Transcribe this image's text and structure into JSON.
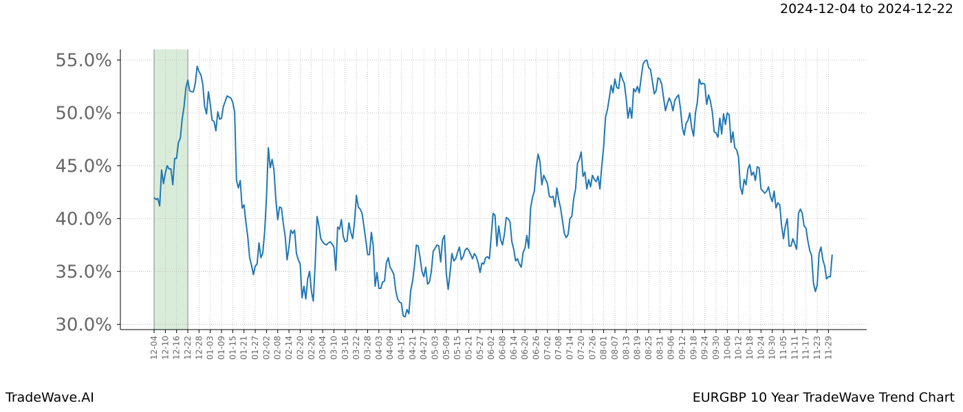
{
  "header": {
    "date_range": "2024-12-04 to 2024-12-22"
  },
  "footer": {
    "brand": "TradeWave.AI",
    "title": "EURGBP 10 Year TradeWave Trend Chart"
  },
  "colors": {
    "line": "#1f77b4",
    "highlight": "#d9ecd9",
    "grid": "#b0b0b0",
    "axis": "#000000",
    "tick_text": "#666666"
  },
  "chart_data": {
    "type": "line",
    "title": "",
    "xlabel": "",
    "ylabel": "",
    "ylim": [
      0.295,
      0.56
    ],
    "y_format": "percent",
    "y_ticks": [
      "30.0%",
      "35.0%",
      "40.0%",
      "45.0%",
      "50.0%",
      "55.0%"
    ],
    "y_tick_values": [
      0.3,
      0.35,
      0.4,
      0.45,
      0.5,
      0.55
    ],
    "x_tick_labels": [
      "12-04",
      "12-10",
      "12-16",
      "12-22",
      "12-28",
      "01-03",
      "01-09",
      "01-15",
      "01-21",
      "01-27",
      "02-02",
      "02-08",
      "02-14",
      "02-20",
      "02-26",
      "03-04",
      "03-10",
      "03-16",
      "03-22",
      "03-28",
      "04-03",
      "04-09",
      "04-15",
      "04-21",
      "04-27",
      "05-03",
      "05-09",
      "05-15",
      "05-21",
      "05-27",
      "06-02",
      "06-08",
      "06-14",
      "06-20",
      "06-26",
      "07-02",
      "07-08",
      "07-14",
      "07-20",
      "07-26",
      "08-01",
      "08-07",
      "08-13",
      "08-19",
      "08-25",
      "08-31",
      "09-06",
      "09-12",
      "09-18",
      "09-24",
      "09-30",
      "10-06",
      "10-12",
      "10-18",
      "10-24",
      "10-30",
      "11-05",
      "11-11",
      "11-17",
      "11-23",
      "11-29"
    ],
    "grid": true,
    "highlight_range": [
      "12-04",
      "12-22"
    ],
    "series": [
      {
        "name": "",
        "x_start": "12-04",
        "step_days": 1,
        "values": [
          0.42,
          0.418,
          0.419,
          0.412,
          0.446,
          0.433,
          0.443,
          0.45,
          0.447,
          0.447,
          0.432,
          0.457,
          0.457,
          0.472,
          0.476,
          0.494,
          0.506,
          0.524,
          0.531,
          0.521,
          0.52,
          0.52,
          0.528,
          0.544,
          0.539,
          0.536,
          0.527,
          0.506,
          0.499,
          0.52,
          0.508,
          0.493,
          0.492,
          0.483,
          0.501,
          0.494,
          0.495,
          0.506,
          0.511,
          0.516,
          0.515,
          0.514,
          0.51,
          0.501,
          0.436,
          0.429,
          0.436,
          0.41,
          0.413,
          0.397,
          0.383,
          0.363,
          0.356,
          0.347,
          0.355,
          0.357,
          0.377,
          0.363,
          0.367,
          0.387,
          0.42,
          0.467,
          0.448,
          0.456,
          0.446,
          0.418,
          0.399,
          0.411,
          0.41,
          0.395,
          0.383,
          0.361,
          0.373,
          0.389,
          0.386,
          0.389,
          0.367,
          0.361,
          0.357,
          0.325,
          0.336,
          0.324,
          0.343,
          0.35,
          0.331,
          0.322,
          0.357,
          0.402,
          0.393,
          0.381,
          0.378,
          0.376,
          0.375,
          0.377,
          0.378,
          0.376,
          0.373,
          0.351,
          0.392,
          0.39,
          0.399,
          0.383,
          0.378,
          0.379,
          0.396,
          0.387,
          0.381,
          0.397,
          0.422,
          0.411,
          0.409,
          0.405,
          0.393,
          0.38,
          0.366,
          0.366,
          0.387,
          0.374,
          0.336,
          0.349,
          0.334,
          0.334,
          0.34,
          0.341,
          0.358,
          0.363,
          0.354,
          0.351,
          0.347,
          0.332,
          0.324,
          0.321,
          0.32,
          0.308,
          0.307,
          0.314,
          0.31,
          0.332,
          0.341,
          0.355,
          0.375,
          0.374,
          0.363,
          0.35,
          0.345,
          0.354,
          0.338,
          0.34,
          0.35,
          0.369,
          0.372,
          0.375,
          0.374,
          0.359,
          0.38,
          0.384,
          0.348,
          0.333,
          0.349,
          0.367,
          0.36,
          0.362,
          0.368,
          0.373,
          0.361,
          0.364,
          0.37,
          0.372,
          0.37,
          0.366,
          0.362,
          0.367,
          0.364,
          0.358,
          0.349,
          0.358,
          0.357,
          0.363,
          0.364,
          0.362,
          0.384,
          0.405,
          0.403,
          0.374,
          0.393,
          0.38,
          0.375,
          0.385,
          0.401,
          0.4,
          0.397,
          0.378,
          0.371,
          0.36,
          0.362,
          0.357,
          0.354,
          0.368,
          0.372,
          0.384,
          0.372,
          0.41,
          0.42,
          0.426,
          0.448,
          0.461,
          0.454,
          0.432,
          0.441,
          0.437,
          0.433,
          0.421,
          0.42,
          0.421,
          0.411,
          0.429,
          0.418,
          0.41,
          0.398,
          0.386,
          0.382,
          0.385,
          0.4,
          0.402,
          0.419,
          0.428,
          0.452,
          0.456,
          0.463,
          0.44,
          0.444,
          0.428,
          0.437,
          0.43,
          0.441,
          0.437,
          0.435,
          0.44,
          0.428,
          0.45,
          0.468,
          0.496,
          0.503,
          0.514,
          0.526,
          0.519,
          0.532,
          0.524,
          0.523,
          0.538,
          0.532,
          0.528,
          0.514,
          0.495,
          0.505,
          0.495,
          0.523,
          0.52,
          0.525,
          0.519,
          0.533,
          0.546,
          0.549,
          0.55,
          0.543,
          0.541,
          0.53,
          0.518,
          0.521,
          0.533,
          0.532,
          0.527,
          0.514,
          0.502,
          0.509,
          0.514,
          0.51,
          0.502,
          0.512,
          0.515,
          0.517,
          0.504,
          0.486,
          0.479,
          0.49,
          0.493,
          0.5,
          0.486,
          0.478,
          0.5,
          0.51,
          0.532,
          0.527,
          0.528,
          0.527,
          0.508,
          0.517,
          0.511,
          0.501,
          0.482,
          0.481,
          0.477,
          0.495,
          0.48,
          0.499,
          0.489,
          0.5,
          0.498,
          0.472,
          0.482,
          0.467,
          0.465,
          0.458,
          0.43,
          0.423,
          0.437,
          0.432,
          0.447,
          0.451,
          0.441,
          0.444,
          0.436,
          0.449,
          0.448,
          0.428,
          0.426,
          0.424,
          0.426,
          0.43,
          0.421,
          0.416,
          0.426,
          0.41,
          0.415,
          0.413,
          0.393,
          0.381,
          0.393,
          0.4,
          0.374,
          0.374,
          0.381,
          0.376,
          0.371,
          0.405,
          0.409,
          0.405,
          0.393,
          0.391,
          0.379,
          0.37,
          0.365,
          0.339,
          0.331,
          0.337,
          0.367,
          0.373,
          0.361,
          0.355,
          0.343,
          0.345,
          0.345,
          0.366
        ]
      }
    ]
  }
}
